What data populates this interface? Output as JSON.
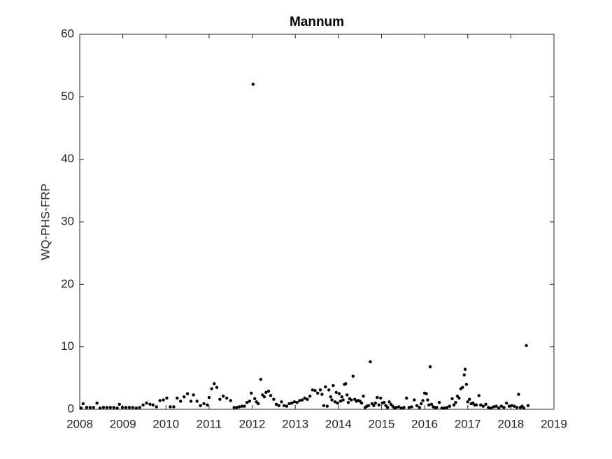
{
  "chart_data": {
    "type": "scatter",
    "title": "Mannum",
    "y_label": "WQ-PHS-FRP",
    "color": "#000000",
    "xlim": [
      2008,
      2019
    ],
    "xticks": [
      2008,
      2009,
      2010,
      2011,
      2012,
      2013,
      2014,
      2015,
      2016,
      2017,
      2018,
      2019
    ],
    "ylim": [
      0,
      60
    ],
    "yticks": [
      0,
      10,
      20,
      30,
      40,
      50,
      60
    ],
    "x": [
      2008.03,
      2008.08,
      2008.16,
      2008.24,
      2008.32,
      2008.4,
      2008.47,
      2008.55,
      2008.63,
      2008.71,
      2008.79,
      2008.87,
      2008.92,
      2008.99,
      2009.07,
      2009.15,
      2009.23,
      2009.31,
      2009.39,
      2009.47,
      2009.55,
      2009.63,
      2009.7,
      2009.78,
      2009.86,
      2009.94,
      2010.02,
      2010.1,
      2010.18,
      2010.26,
      2010.34,
      2010.42,
      2010.5,
      2010.58,
      2010.64,
      2010.72,
      2010.8,
      2010.88,
      2010.96,
      2011.0,
      2011.06,
      2011.12,
      2011.18,
      2011.25,
      2011.33,
      2011.41,
      2011.5,
      2011.58,
      2011.64,
      2011.7,
      2011.76,
      2011.82,
      2011.88,
      2011.94,
      2011.98,
      2012.02,
      2012.06,
      2012.1,
      2012.14,
      2012.2,
      2012.24,
      2012.28,
      2012.32,
      2012.38,
      2012.43,
      2012.5,
      2012.56,
      2012.62,
      2012.68,
      2012.74,
      2012.8,
      2012.86,
      2012.92,
      2012.98,
      2013.04,
      2013.1,
      2013.16,
      2013.22,
      2013.28,
      2013.34,
      2013.4,
      2013.46,
      2013.52,
      2013.58,
      2013.62,
      2013.66,
      2013.7,
      2013.74,
      2013.78,
      2013.82,
      2013.85,
      2013.88,
      2013.92,
      2013.95,
      2013.98,
      2014.02,
      2014.05,
      2014.08,
      2014.11,
      2014.14,
      2014.17,
      2014.2,
      2014.23,
      2014.26,
      2014.3,
      2014.34,
      2014.38,
      2014.42,
      2014.46,
      2014.5,
      2014.54,
      2014.58,
      2014.62,
      2014.66,
      2014.7,
      2014.74,
      2014.78,
      2014.82,
      2014.86,
      2014.9,
      2014.94,
      2014.98,
      2015.02,
      2015.06,
      2015.1,
      2015.14,
      2015.18,
      2015.22,
      2015.26,
      2015.3,
      2015.34,
      2015.4,
      2015.46,
      2015.52,
      2015.58,
      2015.64,
      2015.7,
      2015.76,
      2015.82,
      2015.88,
      2015.92,
      2015.96,
      2016.0,
      2016.04,
      2016.07,
      2016.1,
      2016.13,
      2016.16,
      2016.2,
      2016.24,
      2016.28,
      2016.34,
      2016.4,
      2016.46,
      2016.52,
      2016.58,
      2016.64,
      2016.68,
      2016.72,
      2016.76,
      2016.8,
      2016.84,
      2016.88,
      2016.92,
      2016.94,
      2016.97,
      2017.0,
      2017.04,
      2017.08,
      2017.12,
      2017.16,
      2017.2,
      2017.26,
      2017.3,
      2017.36,
      2017.42,
      2017.48,
      2017.54,
      2017.6,
      2017.66,
      2017.72,
      2017.78,
      2017.84,
      2017.9,
      2017.96,
      2018.02,
      2018.08,
      2018.14,
      2018.18,
      2018.22,
      2018.26,
      2018.3,
      2018.36,
      2018.4
    ],
    "values": [
      0.2,
      0.9,
      0.3,
      0.3,
      0.3,
      1.0,
      0.2,
      0.3,
      0.3,
      0.3,
      0.3,
      0.2,
      0.8,
      0.3,
      0.3,
      0.3,
      0.3,
      0.2,
      0.3,
      0.7,
      1.0,
      0.8,
      0.7,
      0.4,
      1.4,
      1.5,
      1.8,
      0.4,
      0.4,
      1.8,
      1.3,
      2.0,
      2.5,
      1.3,
      2.3,
      1.3,
      0.6,
      0.9,
      0.7,
      1.9,
      3.3,
      4.1,
      3.5,
      1.6,
      2.1,
      1.8,
      1.4,
      0.3,
      0.3,
      0.4,
      0.5,
      0.5,
      1.1,
      1.3,
      2.6,
      52.0,
      1.7,
      1.2,
      0.9,
      4.8,
      2.3,
      2.0,
      2.7,
      2.9,
      2.2,
      1.6,
      0.8,
      0.6,
      1.2,
      0.6,
      0.5,
      0.9,
      1.0,
      1.2,
      1.1,
      1.4,
      1.5,
      1.8,
      1.6,
      2.1,
      3.1,
      3.0,
      2.6,
      3.1,
      2.4,
      0.6,
      3.6,
      0.5,
      3.1,
      2.0,
      1.5,
      3.8,
      1.2,
      2.7,
      1.0,
      2.5,
      1.3,
      2.0,
      1.5,
      4.0,
      4.1,
      2.3,
      1.1,
      1.7,
      1.5,
      5.3,
      1.6,
      1.3,
      1.4,
      1.3,
      1.0,
      2.1,
      0.3,
      0.5,
      0.6,
      7.6,
      0.9,
      0.6,
      1.0,
      1.9,
      0.7,
      1.8,
      1.0,
      1.1,
      0.6,
      0.3,
      1.2,
      0.8,
      0.5,
      0.2,
      0.3,
      0.4,
      0.2,
      0.3,
      1.8,
      0.3,
      0.4,
      1.5,
      0.6,
      0.3,
      0.9,
      1.4,
      2.6,
      2.5,
      1.5,
      0.7,
      6.8,
      0.8,
      0.4,
      0.3,
      0.3,
      1.1,
      0.2,
      0.2,
      0.3,
      0.5,
      1.7,
      0.7,
      1.1,
      2.1,
      1.8,
      3.3,
      3.5,
      5.5,
      6.4,
      4.0,
      1.2,
      1.6,
      0.9,
      1.0,
      0.7,
      0.7,
      2.2,
      0.7,
      0.5,
      0.8,
      0.3,
      0.2,
      0.4,
      0.5,
      0.2,
      0.5,
      0.3,
      1.0,
      0.5,
      0.6,
      0.5,
      0.3,
      2.4,
      0.3,
      0.5,
      0.2,
      10.2,
      0.6
    ]
  }
}
